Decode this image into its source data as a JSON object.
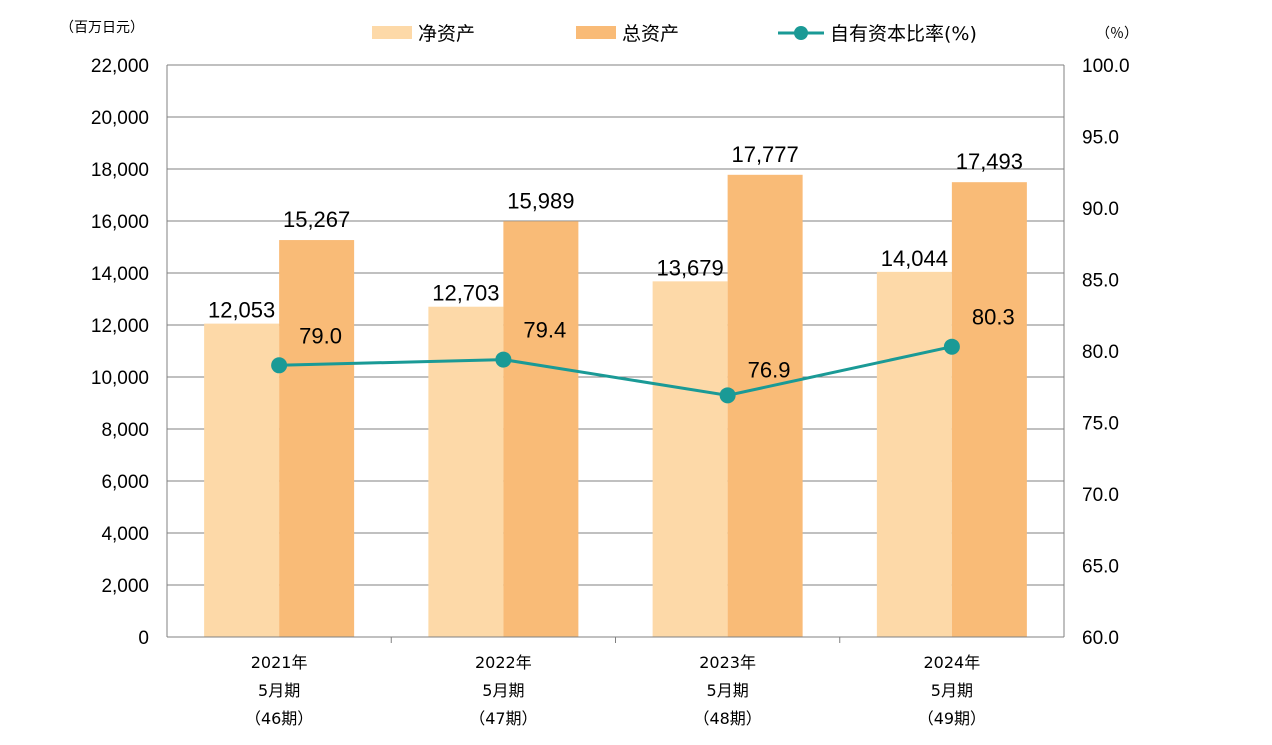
{
  "chart_data": {
    "type": "bar",
    "left_axis_unit": "（百万日元）",
    "right_axis_unit": "（％）",
    "categories": [
      [
        "2021年",
        "5月期",
        "（46期）"
      ],
      [
        "2022年",
        "5月期",
        "（47期）"
      ],
      [
        "2023年",
        "5月期",
        "（48期）"
      ],
      [
        "2024年",
        "5月期",
        "（49期）"
      ]
    ],
    "series": [
      {
        "name": "净资产",
        "kind": "bar",
        "axis": "left",
        "color": "#fdd9a8",
        "values": [
          12053,
          12703,
          13679,
          14044
        ],
        "labels": [
          "12,053",
          "12,703",
          "13,679",
          "14,044"
        ]
      },
      {
        "name": "总资产",
        "kind": "bar",
        "axis": "left",
        "color": "#f9bb77",
        "values": [
          15267,
          15989,
          17777,
          17493
        ],
        "labels": [
          "15,267",
          "15,989",
          "17,777",
          "17,493"
        ]
      },
      {
        "name": "自有资本比率(%)",
        "kind": "line",
        "axis": "right",
        "color": "#1a9a96",
        "values": [
          79.0,
          79.4,
          76.9,
          80.3
        ],
        "labels": [
          "79.0",
          "79.4",
          "76.9",
          "80.3"
        ]
      }
    ],
    "y_left": {
      "min": 0,
      "max": 22000,
      "step": 2000,
      "ticks": [
        "0",
        "2,000",
        "4,000",
        "6,000",
        "8,000",
        "10,000",
        "12,000",
        "14,000",
        "16,000",
        "18,000",
        "20,000",
        "22,000"
      ]
    },
    "y_right": {
      "min": 60,
      "max": 100,
      "step": 5,
      "ticks": [
        "60.0",
        "65.0",
        "70.0",
        "75.0",
        "80.0",
        "85.0",
        "90.0",
        "95.0",
        "100.0"
      ]
    },
    "grid": true,
    "legend_position": "top"
  }
}
